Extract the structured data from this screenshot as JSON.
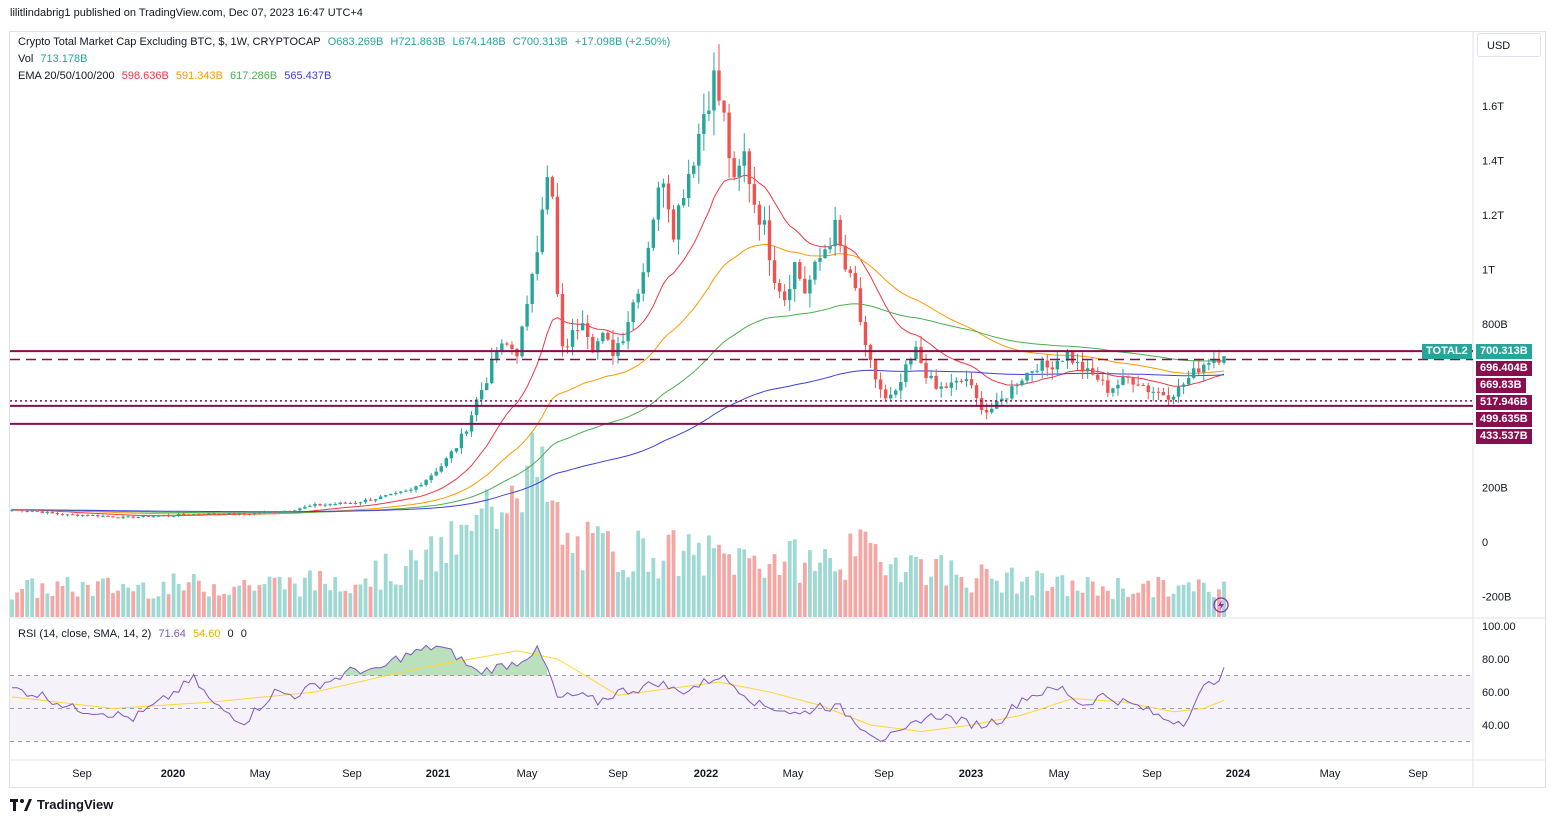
{
  "header": {
    "publisher_line": "lilitlindabrig1 published on TradingView.com, Dec 07, 2023 16:47 UTC+4"
  },
  "legend": {
    "symbol": "Crypto Total Market Cap Excluding BTC, $, 1W, CRYPTOCAP",
    "open": "O683.269B",
    "high": "H721.863B",
    "low": "L674.148B",
    "close": "C700.313B",
    "change": "+17.098B (+2.50%)",
    "vol_label": "Vol",
    "vol_value": "713.178B",
    "ema_label": "EMA 20/50/100/200",
    "ema20": "598.636B",
    "ema50": "591.343B",
    "ema100": "617.286B",
    "ema200": "565.437B"
  },
  "rsi_legend": {
    "label": "RSI (14, close, SMA, 14, 2)",
    "rsi": "71.64",
    "sma": "54.60",
    "v3": "0",
    "v4": "0"
  },
  "currency_button": "USD",
  "footer": {
    "brand": "TradingView"
  },
  "price_badges": [
    {
      "label": "TOTAL2",
      "value": "700.313B",
      "color": "#26a69a"
    },
    {
      "value": "696.404B",
      "color": "#880e4f"
    },
    {
      "value": "669.83B",
      "color": "#880e4f"
    },
    {
      "value": "517.946B",
      "color": "#880e4f"
    },
    {
      "value": "499.635B",
      "color": "#880e4f"
    },
    {
      "value": "433.537B",
      "color": "#880e4f"
    }
  ],
  "colors": {
    "up": "#26a69a",
    "down": "#ef5350",
    "ema20": "#f23645",
    "ema50": "#ff9800",
    "ema100": "#4caf50",
    "ema200": "#3f3fdb",
    "rsi": "#7e57c2",
    "rsi_sma": "#fdd835",
    "level": "#880e4f"
  },
  "chart_data": {
    "type": "candlestick",
    "title": "Crypto Total Market Cap Excluding BTC, $, 1W, CRYPTOCAP",
    "price_axis": {
      "ticks": [
        "1.6T",
        "1.4T",
        "1.2T",
        "1T",
        "800B",
        "200B",
        "0",
        "-200B"
      ],
      "tick_values": [
        1600,
        1400,
        1200,
        1000,
        800,
        200,
        0,
        -200
      ],
      "unit": "B"
    },
    "time_axis": {
      "labels": [
        "Sep",
        "2020",
        "May",
        "Sep",
        "2021",
        "May",
        "Sep",
        "2022",
        "May",
        "Sep",
        "2023",
        "May",
        "Sep",
        "2024",
        "May",
        "Sep"
      ],
      "bold": [
        "2020",
        "2021",
        "2022",
        "2023",
        "2024"
      ]
    },
    "horizontal_levels": [
      {
        "value": 700.313,
        "style": "solid"
      },
      {
        "value": 669.83,
        "style": "dashed"
      },
      {
        "value": 517.946,
        "style": "dotted"
      },
      {
        "value": 499.635,
        "style": "solid"
      },
      {
        "value": 433.537,
        "style": "solid"
      }
    ],
    "price_anchors": [
      [
        0,
        118
      ],
      [
        4,
        115
      ],
      [
        10,
        100
      ],
      [
        16,
        98
      ],
      [
        22,
        90
      ],
      [
        28,
        95
      ],
      [
        34,
        100
      ],
      [
        40,
        105
      ],
      [
        46,
        103
      ],
      [
        52,
        110
      ],
      [
        56,
        120
      ],
      [
        60,
        135
      ],
      [
        64,
        140
      ],
      [
        68,
        145
      ],
      [
        72,
        160
      ],
      [
        76,
        175
      ],
      [
        79,
        190
      ],
      [
        82,
        230
      ],
      [
        85,
        280
      ],
      [
        88,
        350
      ],
      [
        90,
        420
      ],
      [
        92,
        520
      ],
      [
        94,
        600
      ],
      [
        96,
        700
      ],
      [
        98,
        720
      ],
      [
        100,
        700
      ],
      [
        102,
        850
      ],
      [
        103,
        1000
      ],
      [
        104,
        1100
      ],
      [
        105,
        1250
      ],
      [
        106,
        1320
      ],
      [
        107,
        1250
      ],
      [
        108,
        900
      ],
      [
        109,
        700
      ],
      [
        111,
        760
      ],
      [
        113,
        830
      ],
      [
        115,
        720
      ],
      [
        117,
        750
      ],
      [
        119,
        700
      ],
      [
        121,
        760
      ],
      [
        123,
        880
      ],
      [
        125,
        1000
      ],
      [
        127,
        1200
      ],
      [
        129,
        1350
      ],
      [
        131,
        1150
      ],
      [
        133,
        1300
      ],
      [
        135,
        1420
      ],
      [
        137,
        1580
      ],
      [
        139,
        1700
      ],
      [
        141,
        1550
      ],
      [
        143,
        1300
      ],
      [
        145,
        1420
      ],
      [
        147,
        1250
      ],
      [
        149,
        1150
      ],
      [
        151,
        980
      ],
      [
        153,
        900
      ],
      [
        155,
        1020
      ],
      [
        157,
        920
      ],
      [
        159,
        1000
      ],
      [
        161,
        1080
      ],
      [
        163,
        1150
      ],
      [
        165,
        1000
      ],
      [
        167,
        920
      ],
      [
        169,
        700
      ],
      [
        171,
        600
      ],
      [
        173,
        520
      ],
      [
        175,
        540
      ],
      [
        177,
        630
      ],
      [
        179,
        700
      ],
      [
        181,
        620
      ],
      [
        183,
        560
      ],
      [
        185,
        570
      ],
      [
        187,
        580
      ],
      [
        189,
        600
      ],
      [
        191,
        520
      ],
      [
        193,
        480
      ],
      [
        195,
        500
      ],
      [
        197,
        540
      ],
      [
        199,
        590
      ],
      [
        201,
        620
      ],
      [
        203,
        650
      ],
      [
        205,
        640
      ],
      [
        207,
        670
      ],
      [
        209,
        690
      ],
      [
        211,
        650
      ],
      [
        213,
        620
      ],
      [
        215,
        600
      ],
      [
        217,
        560
      ],
      [
        219,
        580
      ],
      [
        221,
        600
      ],
      [
        223,
        590
      ],
      [
        225,
        560
      ],
      [
        227,
        550
      ],
      [
        229,
        540
      ],
      [
        231,
        560
      ],
      [
        233,
        600
      ],
      [
        235,
        640
      ],
      [
        237,
        670
      ],
      [
        239,
        680
      ],
      [
        240,
        700
      ]
    ],
    "ema_end_values": {
      "ema20": 598.636,
      "ema50": 591.343,
      "ema100": 617.286,
      "ema200": 565.437
    },
    "rsi_pane": {
      "ticks": [
        "100.00",
        "80.00",
        "60.00",
        "40.00"
      ],
      "tick_values": [
        100,
        80,
        60,
        40
      ],
      "upper_band": 70,
      "middle": 50,
      "lower_band": 30,
      "rsi_anchors": [
        [
          0,
          62
        ],
        [
          6,
          58
        ],
        [
          12,
          50
        ],
        [
          18,
          48
        ],
        [
          24,
          44
        ],
        [
          30,
          55
        ],
        [
          36,
          68
        ],
        [
          40,
          52
        ],
        [
          46,
          42
        ],
        [
          52,
          60
        ],
        [
          56,
          58
        ],
        [
          60,
          64
        ],
        [
          64,
          68
        ],
        [
          68,
          74
        ],
        [
          72,
          72
        ],
        [
          76,
          80
        ],
        [
          80,
          84
        ],
        [
          84,
          88
        ],
        [
          88,
          82
        ],
        [
          92,
          72
        ],
        [
          96,
          75
        ],
        [
          100,
          78
        ],
        [
          102,
          82
        ],
        [
          104,
          85
        ],
        [
          106,
          74
        ],
        [
          108,
          56
        ],
        [
          112,
          58
        ],
        [
          116,
          54
        ],
        [
          120,
          60
        ],
        [
          124,
          62
        ],
        [
          128,
          66
        ],
        [
          132,
          60
        ],
        [
          136,
          64
        ],
        [
          140,
          70
        ],
        [
          144,
          62
        ],
        [
          148,
          52
        ],
        [
          152,
          50
        ],
        [
          156,
          46
        ],
        [
          160,
          52
        ],
        [
          164,
          50
        ],
        [
          168,
          40
        ],
        [
          172,
          32
        ],
        [
          176,
          34
        ],
        [
          180,
          44
        ],
        [
          184,
          46
        ],
        [
          188,
          42
        ],
        [
          192,
          40
        ],
        [
          196,
          44
        ],
        [
          200,
          56
        ],
        [
          204,
          60
        ],
        [
          208,
          62
        ],
        [
          212,
          52
        ],
        [
          216,
          58
        ],
        [
          220,
          54
        ],
        [
          224,
          50
        ],
        [
          228,
          44
        ],
        [
          232,
          42
        ],
        [
          236,
          62
        ],
        [
          240,
          72
        ]
      ],
      "sma_anchors": [
        [
          0,
          57
        ],
        [
          20,
          50
        ],
        [
          40,
          54
        ],
        [
          60,
          60
        ],
        [
          80,
          74
        ],
        [
          100,
          85
        ],
        [
          108,
          80
        ],
        [
          120,
          58
        ],
        [
          140,
          66
        ],
        [
          150,
          60
        ],
        [
          160,
          52
        ],
        [
          170,
          40
        ],
        [
          180,
          36
        ],
        [
          190,
          40
        ],
        [
          200,
          46
        ],
        [
          210,
          56
        ],
        [
          220,
          54
        ],
        [
          230,
          48
        ],
        [
          236,
          50
        ],
        [
          240,
          55
        ]
      ]
    }
  }
}
